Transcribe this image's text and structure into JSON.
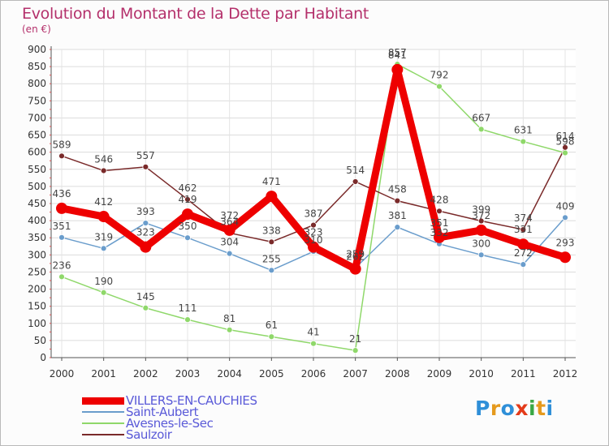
{
  "header": {
    "title": "Evolution du Montant de la Dette par Habitant",
    "subtitle": "(en €)"
  },
  "logo": {
    "text": "Proxiti",
    "letters": [
      "P",
      "r",
      "o",
      "x",
      "i",
      "t",
      "i"
    ]
  },
  "chart_data": {
    "type": "line",
    "title": "Evolution du Montant de la Dette par Habitant",
    "subtitle": "(en €)",
    "xlabel": "",
    "ylabel": "",
    "x": [
      "2000",
      "2001",
      "2002",
      "2003",
      "2004",
      "2005",
      "2006",
      "2007",
      "2008",
      "2009",
      "2010",
      "2011",
      "2012"
    ],
    "ylim": [
      0,
      900
    ],
    "yticks": [
      0,
      50,
      100,
      150,
      200,
      250,
      300,
      350,
      400,
      450,
      500,
      550,
      600,
      650,
      700,
      750,
      800,
      850,
      900
    ],
    "grid": true,
    "legend_position": "bottom-left",
    "series": [
      {
        "name": "VILLERS-EN-CAUCHIES",
        "color": "#ee0000",
        "values": [
          436,
          412,
          323,
          419,
          372,
          471,
          323,
          259,
          841,
          351,
          372,
          331,
          293
        ]
      },
      {
        "name": "Saint-Aubert",
        "color": "#6a9dcc",
        "values": [
          351,
          319,
          393,
          350,
          304,
          255,
          310,
          262,
          381,
          332,
          300,
          272,
          409
        ]
      },
      {
        "name": "Avesnes-le-Sec",
        "color": "#8fd86a",
        "values": [
          236,
          190,
          145,
          111,
          81,
          61,
          41,
          21,
          857,
          792,
          667,
          631,
          598
        ]
      },
      {
        "name": "Saulzoir",
        "color": "#7a2a2a",
        "values": [
          589,
          546,
          557,
          462,
          364,
          338,
          387,
          514,
          458,
          428,
          399,
          374,
          614
        ]
      }
    ]
  }
}
